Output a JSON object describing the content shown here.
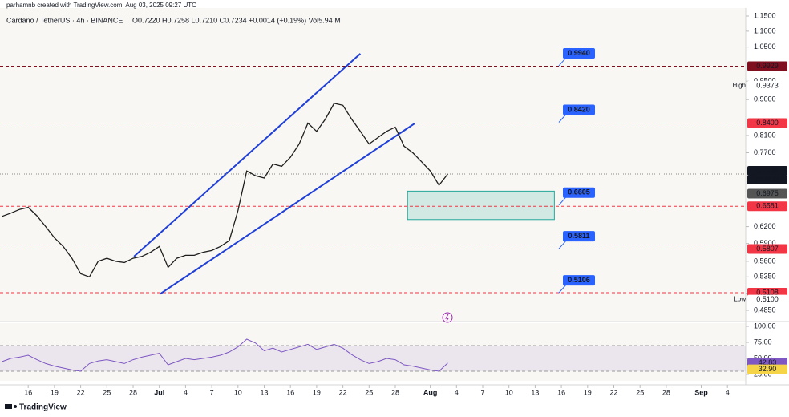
{
  "header": {
    "credit": "parhamnb created with TradingView.com, Aug 03, 2025 09:27 UTC",
    "symbol": "Cardano / TetherUS · 4h · BINANCE",
    "ohlc": "O0.7220 H0.7258 L0.7210 C0.7234 +0.0014 (+0.19%) Vol5.94 M"
  },
  "footer": {
    "brand": "TradingView"
  },
  "chart_data": {
    "type": "line",
    "log_scale": true,
    "color": "#1e1e1e",
    "x": [
      0,
      1,
      2,
      3,
      4,
      5,
      6,
      7,
      8,
      9,
      10,
      11,
      12,
      13,
      14,
      15,
      16,
      17,
      18,
      19,
      20,
      21,
      22,
      23,
      24,
      25,
      26,
      27,
      28,
      29,
      30,
      31,
      32,
      33,
      34,
      35,
      36,
      37,
      38,
      39,
      40,
      41,
      42,
      43,
      44,
      45,
      46,
      47,
      48,
      49,
      50,
      51
    ],
    "values": [
      0.639,
      0.645,
      0.652,
      0.656,
      0.64,
      0.62,
      0.6,
      0.585,
      0.565,
      0.54,
      0.535,
      0.56,
      0.565,
      0.56,
      0.558,
      0.565,
      0.568,
      0.575,
      0.585,
      0.55,
      0.565,
      0.57,
      0.57,
      0.575,
      0.578,
      0.585,
      0.595,
      0.65,
      0.73,
      0.72,
      0.715,
      0.745,
      0.74,
      0.76,
      0.79,
      0.84,
      0.82,
      0.85,
      0.89,
      0.885,
      0.85,
      0.82,
      0.79,
      0.805,
      0.82,
      0.83,
      0.785,
      0.77,
      0.75,
      0.73,
      0.7,
      0.7234
    ],
    "xlim": [
      0,
      85
    ],
    "xticks": [
      {
        "value": 3,
        "label": "16"
      },
      {
        "value": 6,
        "label": "19"
      },
      {
        "value": 9,
        "label": "22"
      },
      {
        "value": 12,
        "label": "25"
      },
      {
        "value": 15,
        "label": "28"
      },
      {
        "value": 18,
        "label": "Jul"
      },
      {
        "value": 21,
        "label": "4"
      },
      {
        "value": 24,
        "label": "7"
      },
      {
        "value": 27,
        "label": "10"
      },
      {
        "value": 30,
        "label": "13"
      },
      {
        "value": 33,
        "label": "16"
      },
      {
        "value": 36,
        "label": "19"
      },
      {
        "value": 39,
        "label": "22"
      },
      {
        "value": 42,
        "label": "25"
      },
      {
        "value": 45,
        "label": "28"
      },
      {
        "value": 49,
        "label": "Aug"
      },
      {
        "value": 52,
        "label": "4"
      },
      {
        "value": 55,
        "label": "7"
      },
      {
        "value": 58,
        "label": "10"
      },
      {
        "value": 61,
        "label": "13"
      },
      {
        "value": 64,
        "label": "16"
      },
      {
        "value": 67,
        "label": "19"
      },
      {
        "value": 70,
        "label": "22"
      },
      {
        "value": 73,
        "label": "25"
      },
      {
        "value": 76,
        "label": "28"
      },
      {
        "value": 80,
        "label": "Sep"
      },
      {
        "value": 83,
        "label": "4"
      }
    ],
    "ylim": [
      0.485,
      1.15
    ],
    "yticks": [
      {
        "value": 1.15,
        "label": "1.1500"
      },
      {
        "value": 1.1,
        "label": "1.1000"
      },
      {
        "value": 1.05,
        "label": "1.0500"
      },
      {
        "value": 0.95,
        "label": "0.9500"
      },
      {
        "value": 0.9,
        "label": "0.9000"
      },
      {
        "value": 0.81,
        "label": "0.8100"
      },
      {
        "value": 0.77,
        "label": "0.7700"
      },
      {
        "value": 0.62,
        "label": "0.6200"
      },
      {
        "value": 0.59,
        "label": "0.5900"
      },
      {
        "value": 0.56,
        "label": "0.5600"
      },
      {
        "value": 0.535,
        "label": "0.5350"
      },
      {
        "value": 0.51,
        "label": "0.5100"
      },
      {
        "value": 0.485,
        "label": "0.4850"
      }
    ],
    "levels": [
      {
        "value": 0.9929,
        "label": "0.9929",
        "color": "#7f0f1e"
      },
      {
        "value": 0.84,
        "label": "0.8400",
        "color": "#f23645"
      },
      {
        "value": 0.6581,
        "label": "0.6581",
        "color": "#f23645"
      },
      {
        "value": 0.5807,
        "label": "0.5807",
        "color": "#f23645"
      },
      {
        "value": 0.5108,
        "label": "0.5108",
        "color": "#f23645"
      }
    ],
    "callouts": [
      {
        "value": 0.994,
        "label": "0.9940"
      },
      {
        "value": 0.842,
        "label": "0.8420"
      },
      {
        "value": 0.6605,
        "label": "0.6605"
      },
      {
        "value": 0.5811,
        "label": "0.5811"
      },
      {
        "value": 0.5106,
        "label": "0.5106"
      }
    ],
    "high": {
      "name": "High",
      "value": 0.9373,
      "label": "0.9373"
    },
    "low": {
      "name": "Low",
      "value": 0.51,
      "label": "0.5100"
    },
    "last_price": {
      "value": 0.7234,
      "label": "0.7234",
      "countdown": "02:32:19"
    },
    "prev_close": {
      "value": 0.6975,
      "label": "0.6975"
    },
    "zone": {
      "top": 0.688,
      "bottom": 0.633,
      "x_start": 46.4,
      "x_end": 63.2,
      "color": "#26a69a"
    },
    "trendlines": [
      {
        "x": [
          15.1,
          41
        ],
        "values": [
          0.568,
          1.03
        ],
        "color": "#1f3fd6"
      },
      {
        "x": [
          18.1,
          47.2
        ],
        "values": [
          0.509,
          0.839
        ],
        "color": "#1f3fd6"
      }
    ],
    "rsi": {
      "values": [
        45,
        50,
        52,
        55,
        48,
        42,
        38,
        35,
        32,
        30,
        42,
        46,
        48,
        45,
        42,
        48,
        52,
        55,
        58,
        40,
        45,
        50,
        48,
        50,
        52,
        55,
        60,
        68,
        80,
        74,
        62,
        66,
        60,
        64,
        68,
        72,
        64,
        68,
        72,
        66,
        56,
        48,
        42,
        45,
        50,
        48,
        40,
        38,
        35,
        32,
        30,
        42.83
      ],
      "color": "#7e57c2",
      "ylim": [
        25,
        100
      ],
      "yticks": [
        {
          "value": 100,
          "label": "100.00"
        },
        {
          "value": 75,
          "label": "75.00"
        },
        {
          "value": 50,
          "label": "50.00"
        },
        {
          "value": 25,
          "label": "25.00"
        }
      ],
      "band": [
        30,
        70
      ],
      "tags": [
        {
          "value": 42.83,
          "label": "42.83",
          "color": "#7e57c2"
        },
        {
          "value": 32.9,
          "label": "32.90",
          "color": "#f5d547"
        }
      ]
    }
  }
}
